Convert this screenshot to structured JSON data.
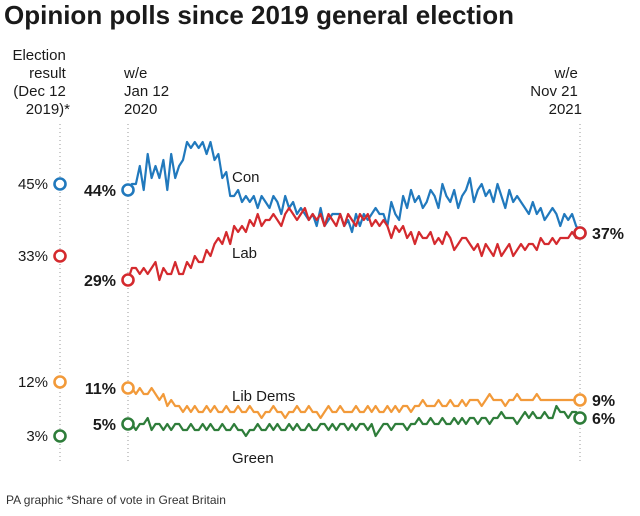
{
  "chart_data": {
    "type": "line",
    "title": "Opinion polls since 2019 general election",
    "footnote": "PA graphic *Share of vote in Great Britain",
    "election_header": [
      "Election",
      "result",
      "(Dec 12",
      "2019)*"
    ],
    "start_header": [
      "w/e",
      "Jan 12",
      "2020"
    ],
    "end_header": [
      "w/e",
      "Nov 21",
      "2021"
    ],
    "start_date": "2020-01-12",
    "end_date": "2021-11-21",
    "y_unit": "%",
    "ylim": [
      0,
      52
    ],
    "grid": false,
    "series": [
      {
        "name": "Con",
        "color": "#2179bd",
        "election": 45,
        "start": 44,
        "end": 37,
        "election_label": "45%",
        "start_label": "44%",
        "end_label": "37%",
        "values": [
          44,
          45,
          45,
          48,
          44,
          50,
          46,
          48,
          46,
          49,
          44,
          50,
          46,
          48,
          49,
          52,
          51,
          52,
          51,
          52,
          50,
          52,
          49,
          50,
          46,
          47,
          43,
          43,
          44,
          42,
          43,
          42,
          43,
          41,
          43,
          42,
          41,
          43,
          42,
          40,
          43,
          41,
          42,
          40,
          41,
          40,
          39,
          40,
          38,
          41,
          38,
          39,
          40,
          40,
          40,
          38,
          39,
          37,
          40,
          38,
          40,
          39,
          40,
          41,
          40,
          40,
          38,
          42,
          40,
          39,
          43,
          41,
          44,
          42,
          43,
          41,
          42,
          44,
          43,
          41,
          45,
          43,
          42,
          44,
          41,
          43,
          44,
          46,
          42,
          44,
          45,
          43,
          44,
          42,
          45,
          43,
          41,
          44,
          42,
          43,
          42,
          41,
          40,
          42,
          40,
          41,
          39,
          40,
          41,
          40,
          38,
          40,
          39,
          40,
          38,
          37
        ]
      },
      {
        "name": "Lab",
        "color": "#d42a2e",
        "election": 33,
        "start": 29,
        "end": 37,
        "election_label": "33%",
        "start_label": "29%",
        "end_label": "37%",
        "values": [
          29,
          31,
          31,
          30,
          31,
          30,
          31,
          32,
          29,
          31,
          30,
          30,
          32,
          30,
          30,
          32,
          31,
          33,
          32,
          32,
          34,
          33,
          35,
          36,
          35,
          37,
          35,
          38,
          37,
          38,
          37,
          39,
          38,
          40,
          38,
          39,
          39,
          40,
          39,
          38,
          40,
          41,
          40,
          39,
          40,
          41,
          39,
          40,
          39,
          40,
          38,
          40,
          39,
          38,
          40,
          38,
          40,
          39,
          38,
          40,
          39,
          40,
          38,
          39,
          38,
          39,
          38,
          36,
          38,
          37,
          38,
          36,
          37,
          35,
          37,
          36,
          36,
          37,
          35,
          36,
          35,
          37,
          36,
          34,
          35,
          36,
          36,
          35,
          34,
          35,
          33,
          35,
          34,
          33,
          35,
          33,
          34,
          35,
          33,
          34,
          35,
          34,
          35,
          35,
          34,
          36,
          35,
          35,
          36,
          35,
          36,
          36,
          36,
          37,
          36,
          37
        ]
      },
      {
        "name": "Lib Dems",
        "color": "#f29a3a",
        "election": 12,
        "start": 11,
        "end": 9,
        "election_label": "12%",
        "start_label": "11%",
        "end_label": "9%",
        "values": [
          11,
          11,
          10,
          11,
          10,
          10,
          11,
          10,
          9,
          10,
          8,
          9,
          8,
          8,
          7,
          8,
          7,
          8,
          7,
          7,
          8,
          7,
          8,
          7,
          7,
          8,
          7,
          7,
          8,
          7,
          7,
          8,
          7,
          7,
          6,
          7,
          7,
          8,
          7,
          7,
          6,
          7,
          7,
          8,
          7,
          7,
          8,
          7,
          7,
          6,
          7,
          8,
          7,
          7,
          8,
          7,
          7,
          7,
          8,
          7,
          7,
          8,
          7,
          8,
          7,
          7,
          8,
          7,
          8,
          7,
          8,
          8,
          7,
          8,
          8,
          9,
          8,
          8,
          8,
          9,
          8,
          8,
          9,
          8,
          8,
          9,
          8,
          9,
          9,
          9,
          8,
          9,
          10,
          9,
          9,
          9,
          8,
          9,
          9,
          10,
          9,
          9,
          9,
          9,
          10,
          9,
          9,
          9,
          9,
          9,
          9,
          9,
          9,
          9,
          9,
          9
        ]
      },
      {
        "name": "Green",
        "color": "#2e7d3a",
        "election": 3,
        "start": 5,
        "end": 6,
        "election_label": "3%",
        "start_label": "5%",
        "end_label": "6%",
        "values": [
          5,
          5,
          4,
          5,
          5,
          6,
          4,
          5,
          5,
          4,
          5,
          4,
          5,
          5,
          4,
          4,
          5,
          4,
          4,
          5,
          4,
          5,
          4,
          4,
          5,
          4,
          4,
          5,
          4,
          4,
          3,
          4,
          4,
          5,
          4,
          4,
          5,
          4,
          5,
          4,
          4,
          5,
          4,
          5,
          4,
          4,
          5,
          4,
          4,
          5,
          5,
          4,
          5,
          4,
          5,
          5,
          4,
          5,
          4,
          5,
          5,
          4,
          5,
          3,
          4,
          5,
          5,
          4,
          5,
          5,
          5,
          4,
          5,
          5,
          6,
          5,
          5,
          6,
          5,
          5,
          6,
          5,
          5,
          6,
          5,
          6,
          5,
          6,
          6,
          5,
          6,
          6,
          5,
          6,
          6,
          7,
          6,
          6,
          6,
          5,
          6,
          7,
          6,
          7,
          6,
          6,
          7,
          6,
          6,
          8,
          7,
          7,
          6,
          7,
          7,
          6
        ]
      }
    ]
  }
}
